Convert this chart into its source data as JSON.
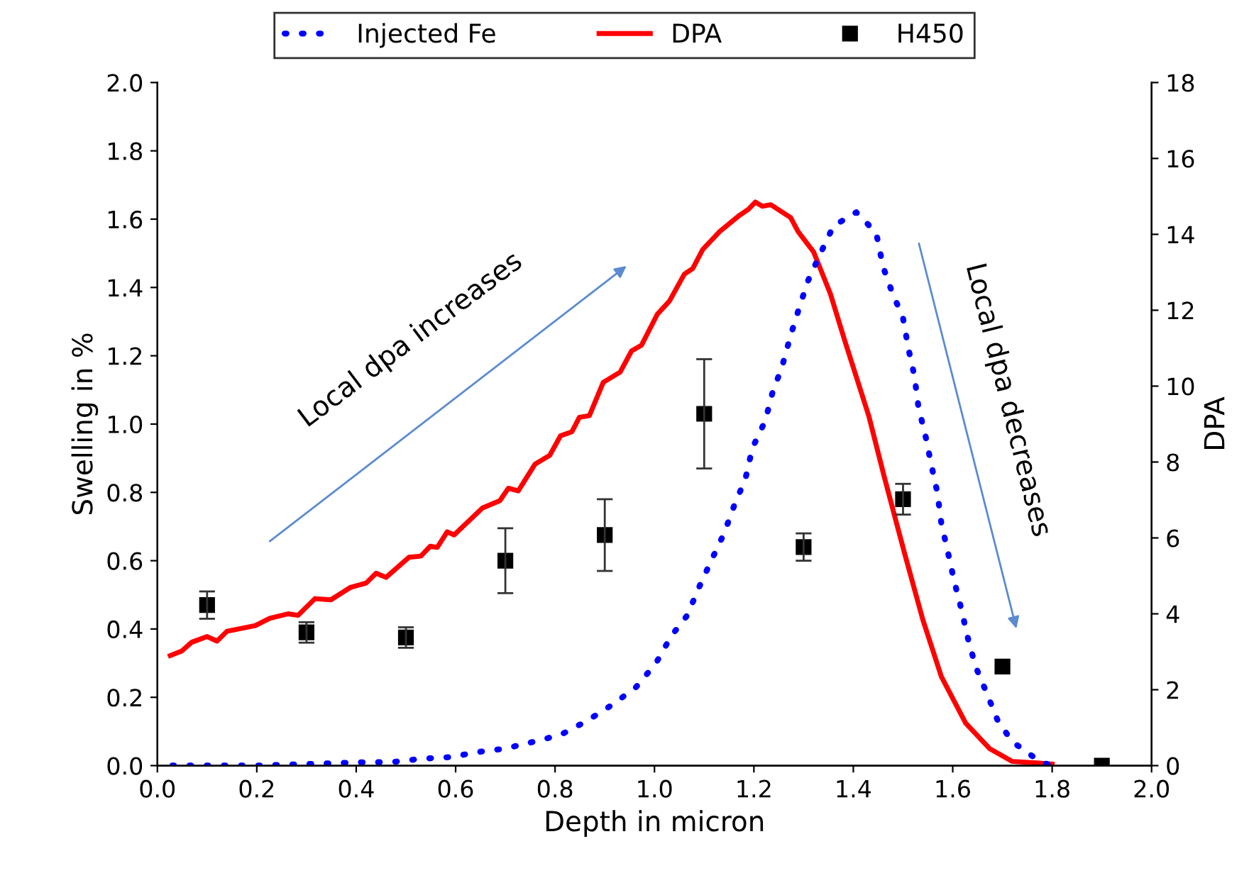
{
  "chart_data": {
    "type": "line",
    "xlabel": "Depth in micron",
    "ylabel": "Swelling in %",
    "y2label": "DPA",
    "xlim": [
      0,
      2
    ],
    "xticks": [
      {
        "value": 0,
        "label": "0.0"
      },
      0.2,
      0.4,
      0.6,
      0.8,
      {
        "value": 1,
        "label": "1.0"
      },
      1.2,
      1.4,
      1.6,
      1.8,
      {
        "value": 2,
        "label": "2.0"
      }
    ],
    "ylim": [
      0,
      2
    ],
    "yticks": [
      {
        "value": 0,
        "label": "0.0"
      },
      0.2,
      0.4,
      0.6,
      0.8,
      {
        "value": 1,
        "label": "1.0"
      },
      1.2,
      1.4,
      1.6,
      1.8,
      {
        "value": 2,
        "label": "2.0"
      }
    ],
    "y2lim": [
      0,
      18
    ],
    "y2ticks": [
      0,
      2,
      4,
      6,
      8,
      10,
      12,
      14,
      16,
      18
    ],
    "legend": "top",
    "grid": false,
    "annotations": [
      "Local dpa increases",
      "Local dpa decreases"
    ],
    "series": [
      {
        "name": "Injected Fe",
        "color": "#0000ff",
        "line_style": "dotted",
        "marker": "none",
        "x": [
          0.03,
          0.2,
          0.42,
          0.47,
          0.53,
          0.59,
          0.646,
          0.7,
          0.757,
          0.811,
          0.863,
          0.917,
          0.963,
          1.003,
          1.034,
          1.066,
          1.089,
          1.111,
          1.14,
          1.16,
          1.183,
          1.197,
          1.223,
          1.237,
          1.257,
          1.274,
          1.291,
          1.309,
          1.334,
          1.36,
          1.406,
          1.446,
          1.46,
          1.477,
          1.5,
          1.511,
          1.523,
          1.531,
          1.546,
          1.557,
          1.569,
          1.577,
          1.591,
          1.603,
          1.617,
          1.631,
          1.646,
          1.669,
          1.691,
          1.72,
          1.777,
          1.8
        ],
        "values": [
          0,
          0,
          0.01,
          0.01,
          0.02,
          0.025,
          0.04,
          0.05,
          0.07,
          0.09,
          0.13,
          0.18,
          0.23,
          0.3,
          0.38,
          0.44,
          0.52,
          0.59,
          0.68,
          0.76,
          0.84,
          0.93,
          1.01,
          1.09,
          1.17,
          1.26,
          1.34,
          1.42,
          1.5,
          1.58,
          1.62,
          1.56,
          1.46,
          1.39,
          1.31,
          1.22,
          1.14,
          1.05,
          0.96,
          0.88,
          0.8,
          0.71,
          0.62,
          0.54,
          0.46,
          0.37,
          0.29,
          0.21,
          0.13,
          0.07,
          0.01,
          0
        ]
      },
      {
        "name": "DPA",
        "axis": "y2",
        "color": "#ff0000",
        "line_style": "solid",
        "marker": "none",
        "x": [
          0.026,
          0.049,
          0.069,
          0.1,
          0.12,
          0.14,
          0.197,
          0.226,
          0.263,
          0.283,
          0.317,
          0.349,
          0.389,
          0.42,
          0.44,
          0.46,
          0.506,
          0.53,
          0.549,
          0.563,
          0.583,
          0.597,
          0.654,
          0.689,
          0.706,
          0.726,
          0.76,
          0.789,
          0.811,
          0.834,
          0.849,
          0.869,
          0.897,
          0.931,
          0.954,
          0.974,
          1.006,
          1.03,
          1.06,
          1.077,
          1.097,
          1.131,
          1.169,
          1.189,
          1.203,
          1.217,
          1.234,
          1.274,
          1.289,
          1.32,
          1.354,
          1.383,
          1.431,
          1.463,
          1.503,
          1.54,
          1.577,
          1.626,
          1.674,
          1.72,
          1.769,
          1.8
        ],
        "values": [
          2.9,
          3.02,
          3.25,
          3.4,
          3.28,
          3.54,
          3.69,
          3.88,
          4.0,
          3.96,
          4.4,
          4.37,
          4.7,
          4.81,
          5.07,
          4.96,
          5.49,
          5.52,
          5.78,
          5.75,
          6.16,
          6.08,
          6.79,
          6.98,
          7.31,
          7.24,
          7.95,
          8.17,
          8.69,
          8.8,
          9.18,
          9.22,
          10.1,
          10.37,
          10.93,
          11.08,
          11.9,
          12.24,
          12.95,
          13.1,
          13.6,
          14.07,
          14.48,
          14.66,
          14.85,
          14.74,
          14.78,
          14.44,
          14.07,
          13.54,
          12.43,
          11.19,
          9.22,
          7.57,
          5.6,
          3.84,
          2.35,
          1.12,
          0.45,
          0.11,
          0.07,
          0.04
        ]
      },
      {
        "name": "H450",
        "type": "scatter",
        "color": "#000000",
        "marker": "square",
        "x": [
          0.1,
          0.3,
          0.5,
          0.7,
          0.9,
          1.1,
          1.3,
          1.5,
          1.7,
          1.9
        ],
        "values": [
          0.47,
          0.39,
          0.375,
          0.6,
          0.675,
          1.03,
          0.64,
          0.78,
          0.29,
          0.0
        ],
        "errors": [
          0.04,
          0.03,
          0.03,
          0.095,
          0.105,
          0.16,
          0.04,
          0.045,
          null,
          null
        ]
      }
    ]
  }
}
